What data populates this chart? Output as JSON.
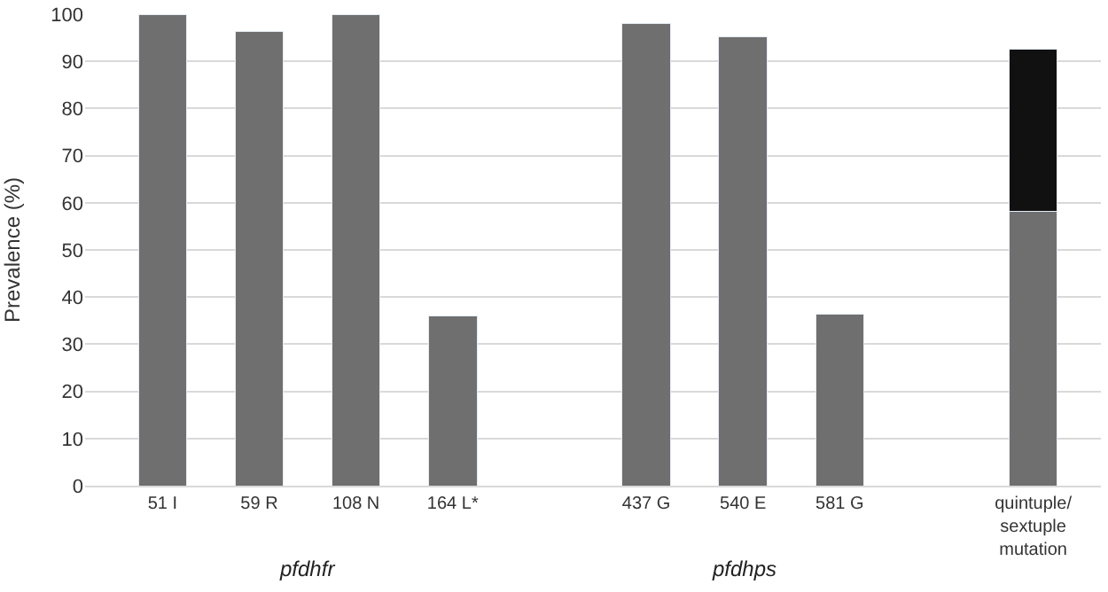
{
  "chart_data": {
    "type": "bar",
    "ylabel": "Prevalence (%)",
    "categories": [
      "51 I",
      "59 R",
      "108 N",
      "164 L*",
      null,
      "437 G",
      "540 E",
      "581 G",
      null,
      "quintuple/ sextuple mutation"
    ],
    "series": [
      {
        "color": "#6f6f6f",
        "values": [
          100,
          96.4,
          100,
          36,
          null,
          98.1,
          95.3,
          36.3,
          null,
          58.1
        ]
      },
      {
        "color": "#111111",
        "values": [
          null,
          null,
          null,
          null,
          null,
          null,
          null,
          null,
          null,
          34.4
        ]
      }
    ],
    "stacked": true,
    "ylim": [
      0,
      100
    ],
    "yticks": [
      0,
      10,
      20,
      30,
      40,
      50,
      60,
      70,
      80,
      90,
      100
    ],
    "grid": "y",
    "legend": false,
    "annotations": [
      "pfdhfr",
      "pfdhps"
    ]
  }
}
